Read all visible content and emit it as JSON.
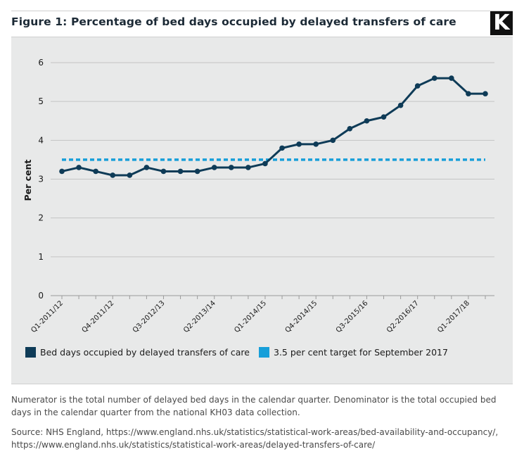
{
  "header": {
    "title": "Figure 1: Percentage of bed days occupied by delayed transfers of care",
    "logo_text": "K"
  },
  "legend": {
    "series_label": "Bed days occupied by delayed transfers of care",
    "target_label": "3.5 per cent target for September 2017"
  },
  "footer": {
    "note": "Numerator is the total number of delayed bed days in the calendar quarter. Denominator is the total occupied bed days in the calendar quarter from the national KH03 data collection.",
    "source_line1": "Source: NHS England, https://www.england.nhs.uk/statistics/statistical-work-areas/bed-availability-and-occupancy/,",
    "source_line2": "https://www.england.nhs.uk/statistics/statistical-work-areas/delayed-transfers-of-care/"
  },
  "colors": {
    "series": "#0e3b57",
    "target": "#179fd9",
    "panel": "#e8e9e9"
  },
  "chart_data": {
    "type": "line",
    "title": "Figure 1: Percentage of bed days occupied by delayed transfers of care",
    "xlabel": "",
    "ylabel": "Per cent",
    "ylim": [
      0,
      6
    ],
    "yticks": [
      0,
      1,
      2,
      3,
      4,
      5,
      6
    ],
    "grid": true,
    "legend_position": "bottom-left",
    "x": [
      "Q1-2011/12",
      "Q2-2011/12",
      "Q3-2011/12",
      "Q4-2011/12",
      "Q1-2012/13",
      "Q2-2012/13",
      "Q3-2012/13",
      "Q4-2012/13",
      "Q1-2013/14",
      "Q2-2013/14",
      "Q3-2013/14",
      "Q4-2013/14",
      "Q1-2014/15",
      "Q2-2014/15",
      "Q3-2014/15",
      "Q4-2014/15",
      "Q1-2015/16",
      "Q2-2015/16",
      "Q3-2015/16",
      "Q4-2015/16",
      "Q1-2016/17",
      "Q2-2016/17",
      "Q3-2016/17",
      "Q4-2016/17",
      "Q1-2017/18",
      "Q2-2017/18"
    ],
    "tick_labels": [
      "Q1-2011/12",
      "Q4-2011/12",
      "Q3-2012/13",
      "Q2-2013/14",
      "Q1-2014/15",
      "Q4-2014/15",
      "Q3-2015/16",
      "Q2-2016/17",
      "Q1-2017/18"
    ],
    "series": [
      {
        "name": "Bed days occupied by delayed transfers of care",
        "style": "solid-with-markers",
        "values": [
          3.2,
          3.3,
          3.2,
          3.1,
          3.1,
          3.3,
          3.2,
          3.2,
          3.2,
          3.3,
          3.3,
          3.3,
          3.4,
          3.8,
          3.9,
          3.9,
          4.0,
          4.3,
          4.5,
          4.6,
          4.9,
          5.4,
          5.6,
          5.6,
          5.2,
          5.2
        ]
      },
      {
        "name": "3.5 per cent target for September 2017",
        "style": "dotted",
        "values": [
          3.5,
          3.5,
          3.5,
          3.5,
          3.5,
          3.5,
          3.5,
          3.5,
          3.5,
          3.5,
          3.5,
          3.5,
          3.5,
          3.5,
          3.5,
          3.5,
          3.5,
          3.5,
          3.5,
          3.5,
          3.5,
          3.5,
          3.5,
          3.5,
          3.5,
          3.5
        ]
      }
    ]
  }
}
